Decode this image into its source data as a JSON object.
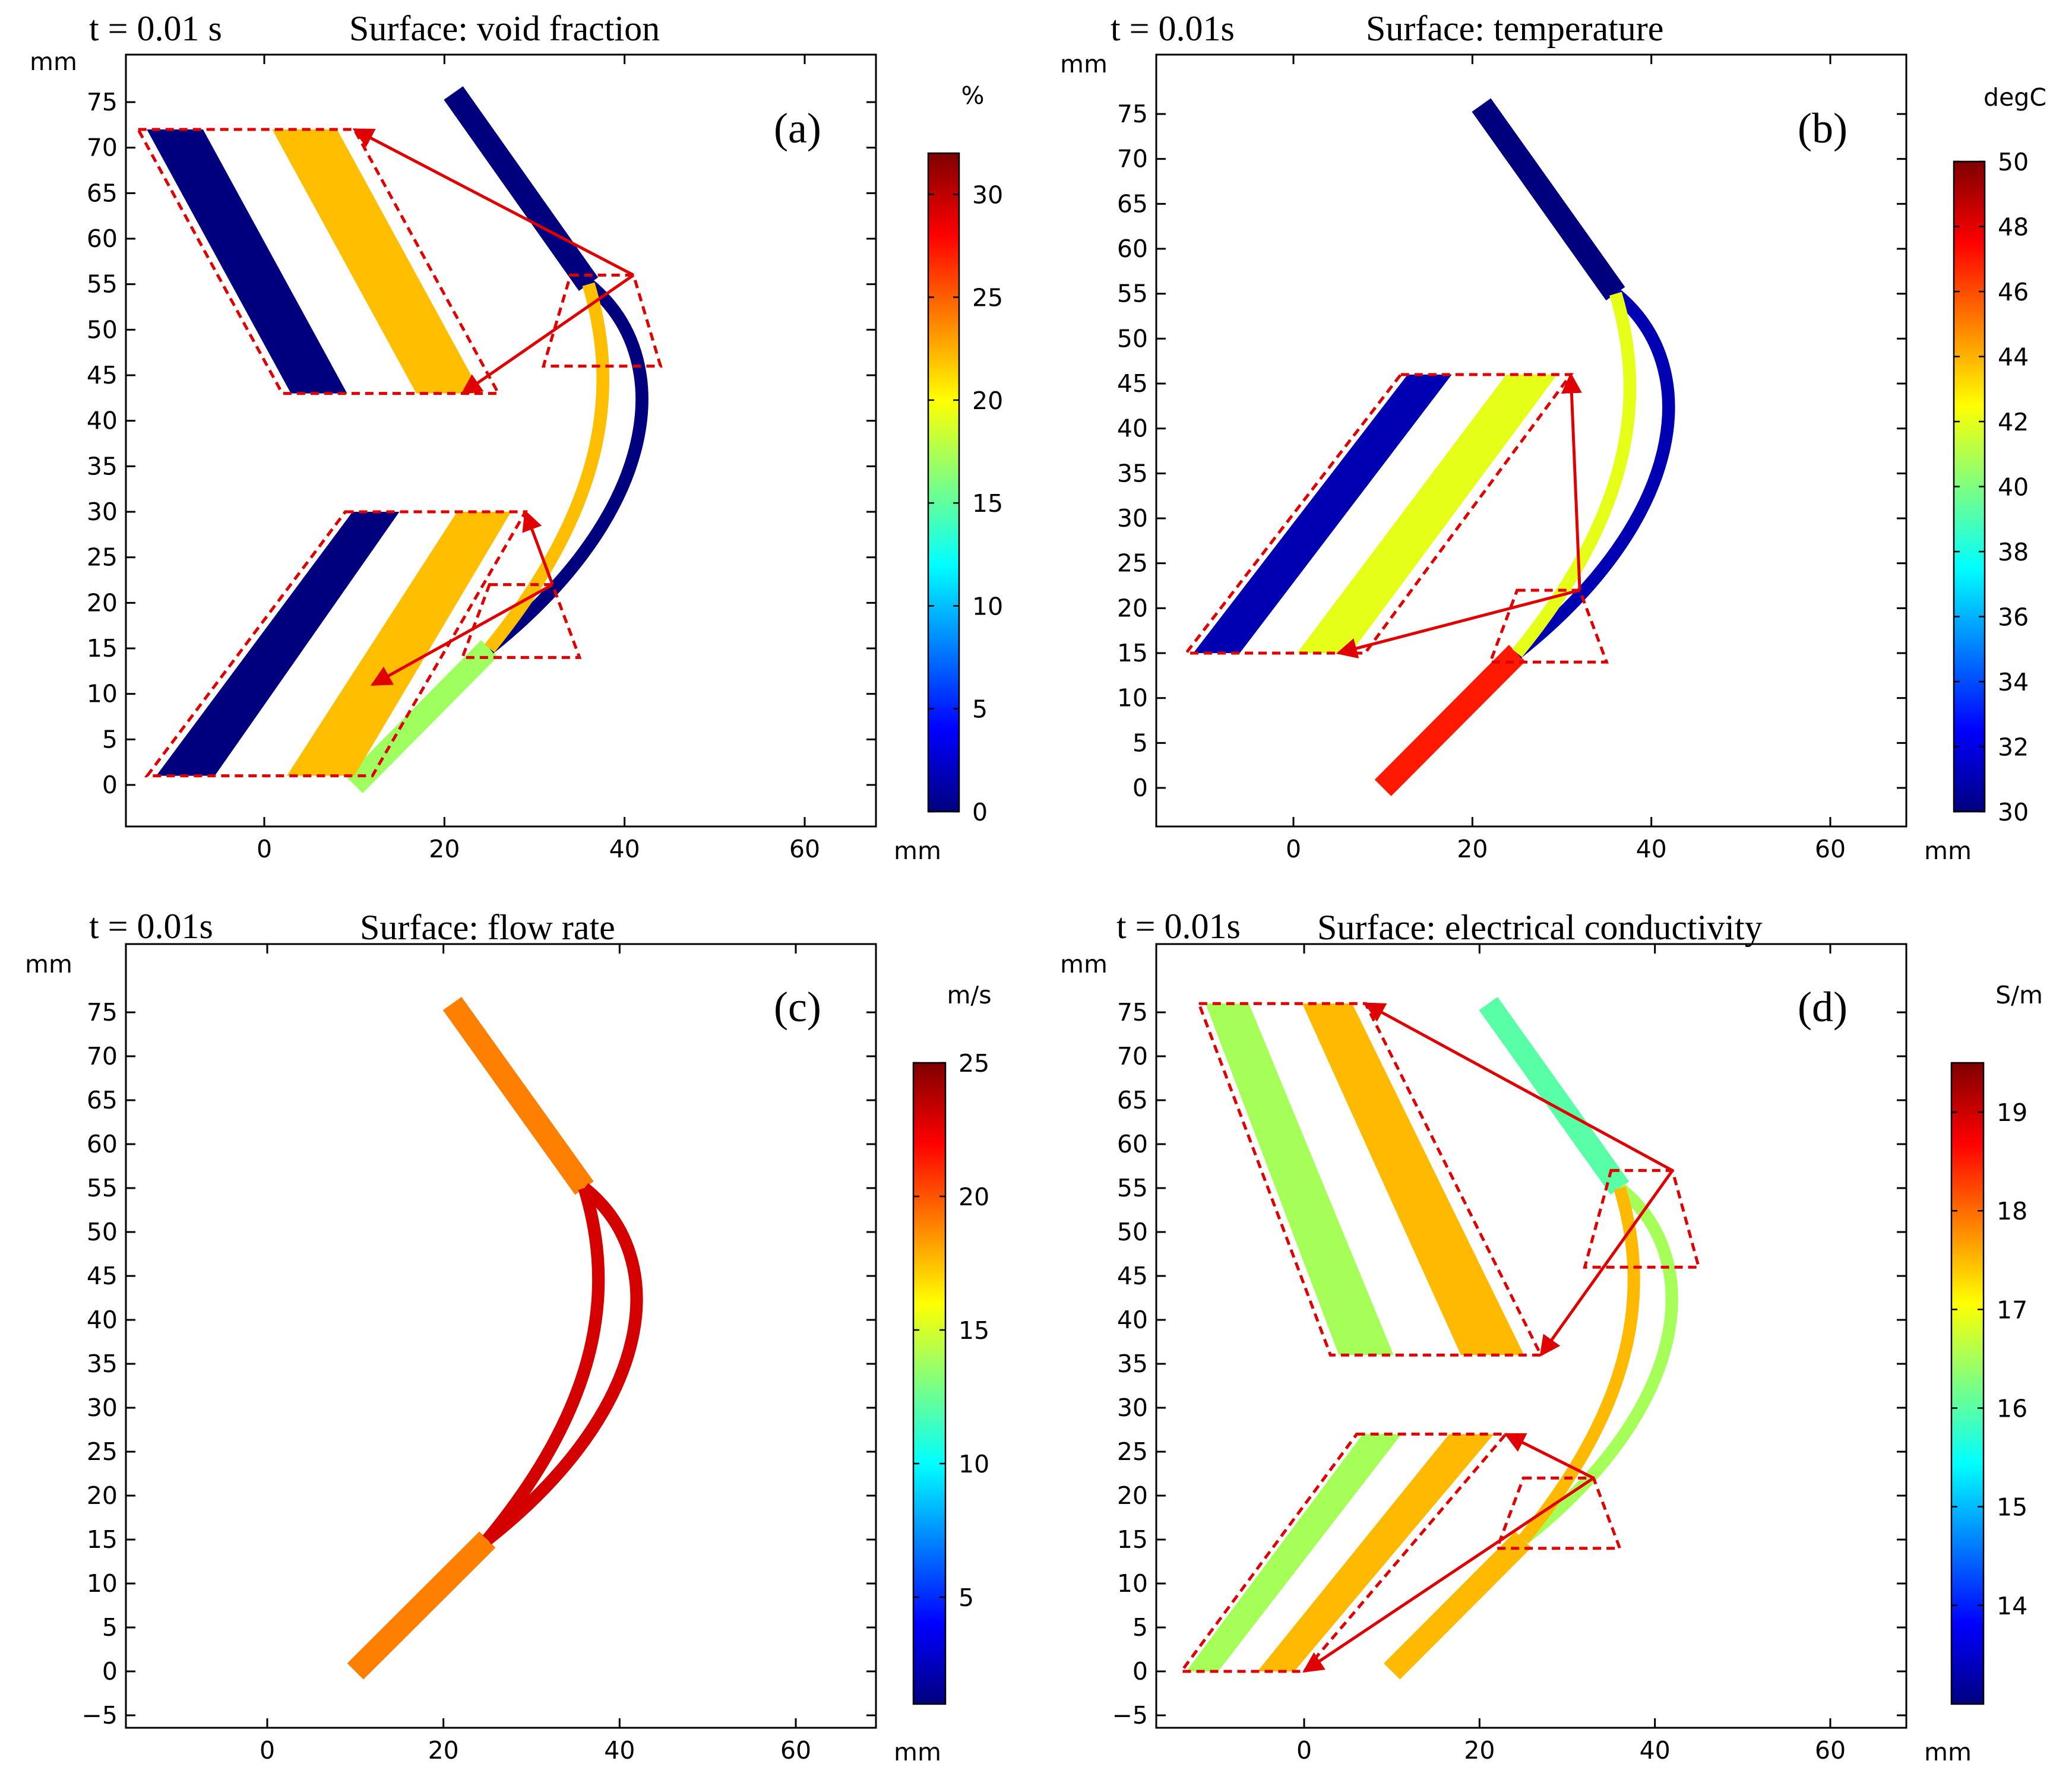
{
  "colors": {
    "zoom_box": "#e00000",
    "jet": [
      "#00007f",
      "#0000ff",
      "#007fff",
      "#00ffff",
      "#7fff7f",
      "#ffff00",
      "#ff7f00",
      "#ff0000",
      "#7f0000"
    ]
  },
  "chart_data": [
    {
      "type": "heatmap",
      "panel": "(a)",
      "time_label": "t = 0.01 s",
      "title": "Surface: void fraction",
      "x_unit": "mm",
      "y_unit": "mm",
      "xlim": [
        -15,
        68
      ],
      "ylim": [
        -4,
        80
      ],
      "x_ticks": [
        0,
        20,
        40,
        60
      ],
      "y_ticks": [
        0,
        5,
        10,
        15,
        20,
        25,
        30,
        35,
        40,
        45,
        50,
        55,
        60,
        65,
        70,
        75
      ],
      "colorbar": {
        "unit": "%",
        "range": [
          0,
          32
        ],
        "ticks": [
          0,
          5,
          10,
          15,
          20,
          25,
          30
        ]
      },
      "field_values": {
        "inlet_pipe": 0,
        "upper_branch_wall": 0,
        "lower_branch_core": 22,
        "outlet_pipe": 17
      },
      "zoom_regions": [
        {
          "name": "upper bifurcation",
          "x": [
            31,
            44
          ],
          "y": [
            46,
            56
          ]
        },
        {
          "name": "lower junction",
          "x": [
            22,
            35
          ],
          "y": [
            14,
            22
          ]
        }
      ]
    },
    {
      "type": "heatmap",
      "panel": "(b)",
      "time_label": "t = 0.01s",
      "title": "Surface: temperature",
      "x_unit": "mm",
      "y_unit": "mm",
      "xlim": [
        -15,
        68
      ],
      "ylim": [
        -4,
        80
      ],
      "x_ticks": [
        0,
        20,
        40,
        60
      ],
      "y_ticks": [
        0,
        5,
        10,
        15,
        20,
        25,
        30,
        35,
        40,
        45,
        50,
        55,
        60,
        65,
        70,
        75
      ],
      "colorbar": {
        "unit": "degC",
        "range": [
          30,
          50
        ],
        "ticks": [
          30,
          32,
          34,
          36,
          38,
          40,
          42,
          44,
          46,
          48,
          50
        ]
      },
      "field_values": {
        "inlet_pipe": 30,
        "upper_branch": 31,
        "lower_branch": 42,
        "outlet_pipe": 47
      },
      "zoom_regions": [
        {
          "name": "lower junction",
          "x": [
            22,
            35
          ],
          "y": [
            14,
            22
          ]
        }
      ]
    },
    {
      "type": "heatmap",
      "panel": "(c)",
      "time_label": "t = 0.01s",
      "title": "Surface: flow rate",
      "x_unit": "mm",
      "y_unit": "mm",
      "xlim": [
        -15,
        68
      ],
      "ylim": [
        -5,
        80
      ],
      "x_ticks": [
        0,
        20,
        40,
        60
      ],
      "y_ticks": [
        -5,
        0,
        5,
        10,
        15,
        20,
        25,
        30,
        35,
        40,
        45,
        50,
        55,
        60,
        65,
        70,
        75
      ],
      "colorbar": {
        "unit": "m/s",
        "range": [
          1,
          25
        ],
        "ticks": [
          5,
          10,
          15,
          20,
          25
        ]
      },
      "field_values": {
        "inlet_pipe": 19,
        "branches": 23,
        "outlet_pipe": 19
      },
      "zoom_regions": []
    },
    {
      "type": "heatmap",
      "panel": "(d)",
      "time_label": "t = 0.01s",
      "title": "Surface: electrical conductivity",
      "x_unit": "mm",
      "y_unit": "mm",
      "xlim": [
        -15,
        68
      ],
      "ylim": [
        -5,
        80
      ],
      "x_ticks": [
        0,
        20,
        40,
        60
      ],
      "y_ticks": [
        -5,
        0,
        5,
        10,
        15,
        20,
        25,
        30,
        35,
        40,
        45,
        50,
        55,
        60,
        65,
        70,
        75
      ],
      "colorbar": {
        "unit": "S/m",
        "range": [
          13,
          19.5
        ],
        "ticks": [
          14,
          15,
          16,
          17,
          18,
          19
        ]
      },
      "field_values": {
        "inlet_pipe": 16,
        "upper_branch": 16.5,
        "lower_branch": 17.5,
        "outlet_pipe": 17.5
      },
      "zoom_regions": [
        {
          "name": "upper bifurcation",
          "x": [
            32,
            45
          ],
          "y": [
            46,
            57
          ]
        },
        {
          "name": "lower junction",
          "x": [
            22,
            36
          ],
          "y": [
            14,
            22
          ]
        }
      ]
    }
  ]
}
